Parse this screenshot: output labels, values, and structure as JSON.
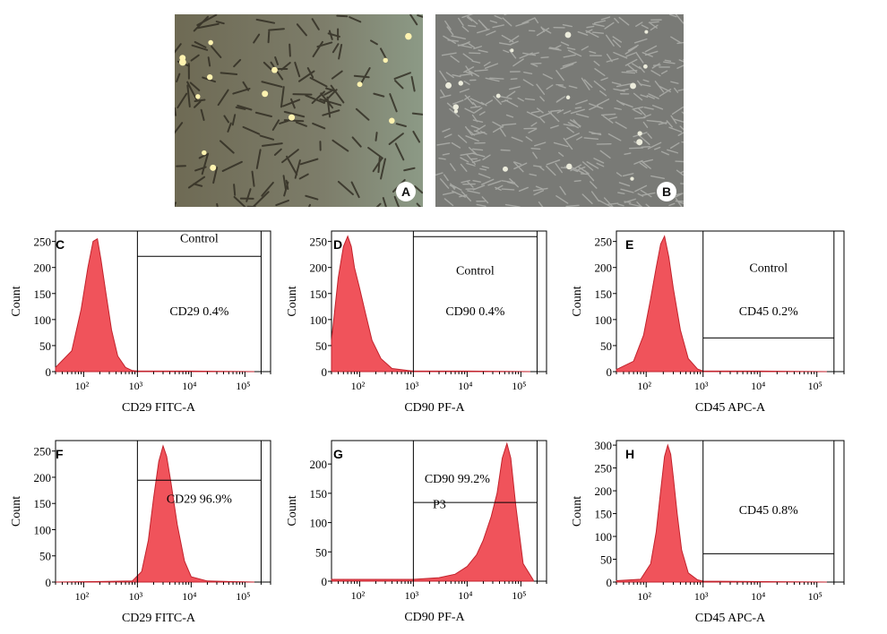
{
  "photos": [
    {
      "label": "A"
    },
    {
      "label": "B"
    }
  ],
  "chart_data": [
    {
      "type": "area",
      "panel": "C",
      "ylabel": "Count",
      "xlabel": "CD29 FITC-A",
      "x_scale": "log",
      "xlim": [
        30,
        300000
      ],
      "xticks": [
        "10²",
        "10³",
        "10⁴",
        "10⁵"
      ],
      "ylim": [
        0,
        270
      ],
      "yticks": [
        "0",
        "50",
        "100",
        "150",
        "200",
        "250"
      ],
      "gate_label": "Control",
      "gate_stat": "CD29  0.4%",
      "series": [
        {
          "x": [
            30,
            60,
            90,
            120,
            150,
            180,
            210,
            260,
            330,
            430,
            600,
            800,
            1000,
            10000,
            150000
          ],
          "y": [
            8,
            40,
            120,
            200,
            250,
            255,
            215,
            150,
            80,
            30,
            8,
            2,
            1,
            1,
            0
          ]
        }
      ]
    },
    {
      "type": "area",
      "panel": "D",
      "ylabel": "Count",
      "xlabel": "CD90 PF-A",
      "x_scale": "log",
      "xlim": [
        30,
        300000
      ],
      "xticks": [
        "10²",
        "10³",
        "10⁴",
        "10⁵"
      ],
      "ylim": [
        0,
        270
      ],
      "yticks": [
        "0",
        "50",
        "100",
        "150",
        "200",
        "250"
      ],
      "gate_label": "Control",
      "gate_stat": "CD90  0.4%",
      "series": [
        {
          "x": [
            30,
            40,
            50,
            60,
            70,
            80,
            100,
            130,
            170,
            250,
            400,
            800,
            1000,
            10000,
            150000
          ],
          "y": [
            60,
            180,
            240,
            260,
            240,
            200,
            160,
            110,
            60,
            25,
            6,
            2,
            1,
            1,
            0
          ]
        }
      ]
    },
    {
      "type": "area",
      "panel": "E",
      "ylabel": "Count",
      "xlabel": "CD45 APC-A",
      "x_scale": "log",
      "xlim": [
        30,
        300000
      ],
      "xticks": [
        "10²",
        "10³",
        "10⁴",
        "10⁵"
      ],
      "ylim": [
        0,
        270
      ],
      "yticks": [
        "0",
        "50",
        "100",
        "150",
        "200",
        "250"
      ],
      "gate_label": "Control",
      "gate_stat": "CD45  0.2%",
      "series": [
        {
          "x": [
            30,
            60,
            90,
            120,
            150,
            180,
            210,
            250,
            300,
            400,
            550,
            800,
            1000,
            10000,
            150000
          ],
          "y": [
            4,
            20,
            70,
            140,
            200,
            245,
            260,
            220,
            160,
            80,
            25,
            5,
            1,
            1,
            0
          ]
        }
      ]
    },
    {
      "type": "area",
      "panel": "F",
      "ylabel": "Count",
      "xlabel": "CD29 FITC-A",
      "x_scale": "log",
      "xlim": [
        30,
        300000
      ],
      "xticks": [
        "10²",
        "10³",
        "10⁴",
        "10⁵"
      ],
      "ylim": [
        0,
        270
      ],
      "yticks": [
        "0",
        "50",
        "100",
        "150",
        "200",
        "250"
      ],
      "gate_label": "",
      "gate_stat": "CD29   96.9%",
      "series": [
        {
          "x": [
            30,
            200,
            800,
            1200,
            1600,
            2000,
            2500,
            3000,
            3500,
            4200,
            5500,
            7500,
            10000,
            20000,
            150000
          ],
          "y": [
            0,
            1,
            2,
            20,
            80,
            160,
            230,
            260,
            240,
            190,
            110,
            40,
            10,
            2,
            0
          ]
        }
      ]
    },
    {
      "type": "area",
      "panel": "G",
      "ylabel": "Count",
      "xlabel": "CD90 PF-A",
      "x_scale": "log",
      "xlim": [
        30,
        300000
      ],
      "xticks": [
        "10²",
        "10³",
        "10⁴",
        "10⁵"
      ],
      "ylim": [
        0,
        240
      ],
      "yticks": [
        "0",
        "50",
        "100",
        "150",
        "200"
      ],
      "gate_label": "P3",
      "gate_stat": "CD90  99.2%",
      "series": [
        {
          "x": [
            30,
            1000,
            3000,
            6000,
            10000,
            15000,
            20000,
            28000,
            36000,
            45000,
            55000,
            65000,
            80000,
            110000,
            170000
          ],
          "y": [
            3,
            3,
            6,
            12,
            25,
            45,
            70,
            110,
            150,
            210,
            235,
            210,
            130,
            30,
            2
          ]
        }
      ]
    },
    {
      "type": "area",
      "panel": "H",
      "ylabel": "Count",
      "xlabel": "CD45 APC-A",
      "x_scale": "log",
      "xlim": [
        30,
        300000
      ],
      "xticks": [
        "10²",
        "10³",
        "10⁴",
        "10⁵"
      ],
      "ylim": [
        0,
        310
      ],
      "yticks": [
        "0",
        "50",
        "100",
        "150",
        "200",
        "250",
        "300"
      ],
      "gate_label": "",
      "gate_stat": "CD45  0.8%",
      "series": [
        {
          "x": [
            30,
            80,
            120,
            150,
            180,
            210,
            240,
            270,
            300,
            350,
            420,
            550,
            800,
            1000,
            150000
          ],
          "y": [
            3,
            6,
            40,
            110,
            200,
            275,
            300,
            280,
            230,
            150,
            70,
            20,
            5,
            2,
            0
          ]
        }
      ]
    }
  ]
}
